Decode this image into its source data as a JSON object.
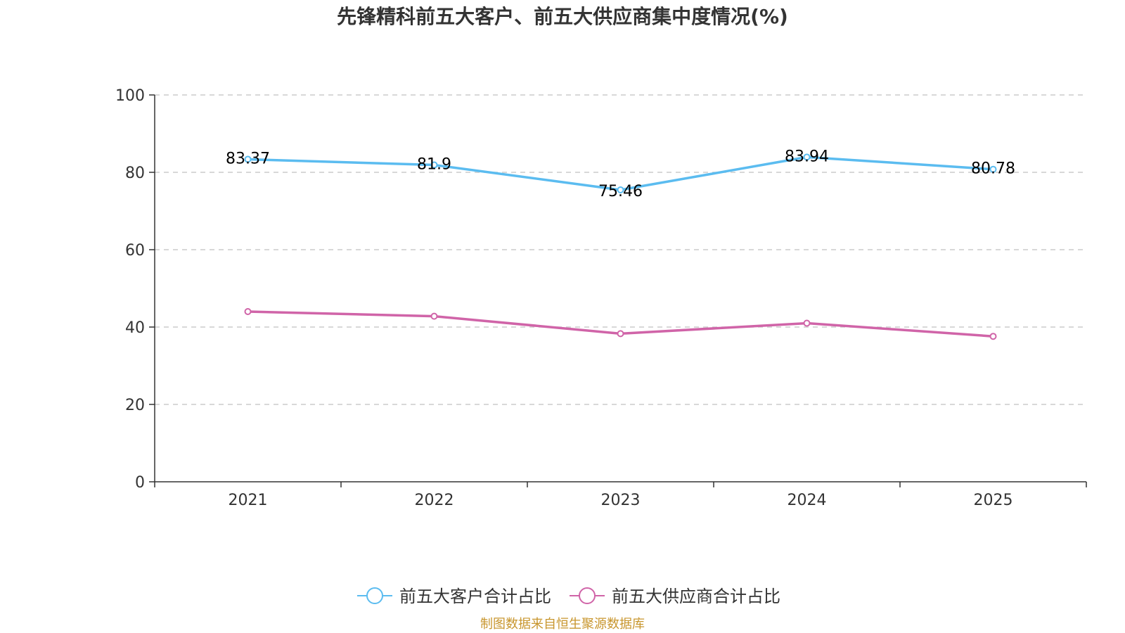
{
  "chart_data": {
    "type": "line",
    "title": "先锋精科前五大客户、前五大供应商集中度情况(%)",
    "categories": [
      "2021",
      "2022",
      "2023",
      "2024",
      "2025"
    ],
    "ylim": [
      0,
      100
    ],
    "yticks": [
      "0",
      "20",
      "40",
      "60",
      "80",
      "100"
    ],
    "grid": true,
    "legend_position": "bottom",
    "series": [
      {
        "name": "前五大客户合计占比",
        "color": "#5bbcf0",
        "values": [
          83.37,
          81.9,
          75.46,
          83.94,
          80.78
        ],
        "labels": [
          "83.37",
          "81.9",
          "75.46",
          "83.94",
          "80.78"
        ]
      },
      {
        "name": "前五大供应商合计占比",
        "color": "#d064a8",
        "values": [
          44.0,
          42.8,
          38.3,
          41.0,
          37.6
        ],
        "labels": []
      }
    ],
    "source": "制图数据来自恒生聚源数据库",
    "source_color": "#c8962e"
  }
}
